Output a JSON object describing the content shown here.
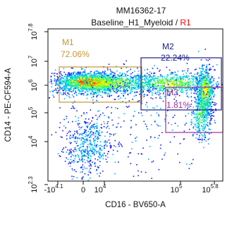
{
  "chart_data": {
    "type": "scatter",
    "subtype": "flow-cytometry-density-dot-plot",
    "title": "MM16362-17",
    "subtitle_main": "Baseline_H1_Myeloid",
    "subtitle_sep": " / ",
    "subtitle_gate": "R1",
    "xlabel": "CD16 - BV650-A",
    "ylabel": "CD14 - PE-CF594-A",
    "x_scale": "biexponential",
    "y_scale": "biexponential",
    "x_ticks": [
      {
        "base": "-10",
        "exp": "4.1"
      },
      {
        "base": "0",
        "exp": ""
      },
      {
        "base": "10",
        "exp": "4"
      },
      {
        "base": "10",
        "exp": "5"
      },
      {
        "base": "10",
        "exp": "5.8"
      }
    ],
    "y_ticks": [
      {
        "base": "10",
        "exp": "7.8"
      },
      {
        "base": "10",
        "exp": "7"
      },
      {
        "base": "10",
        "exp": "6"
      },
      {
        "base": "10",
        "exp": "5"
      },
      {
        "base": "10",
        "exp": "4"
      },
      {
        "base": "10",
        "exp": "2.3"
      }
    ],
    "gates": [
      {
        "name": "M1",
        "percent": "72.06%",
        "color": "#c8962e"
      },
      {
        "name": "M2",
        "percent": "22.24%",
        "color": "#1c1c8c"
      },
      {
        "name": "M3",
        "percent": "1.81%",
        "color": "#a0309a"
      }
    ],
    "colormap": [
      "#1a1aff",
      "#00b4ff",
      "#00e5c0",
      "#66ff33",
      "#ffee00",
      "#ff8800",
      "#ff2200"
    ],
    "subtitle_gate_color": "#ff0000",
    "grid": false,
    "legend": "none"
  }
}
